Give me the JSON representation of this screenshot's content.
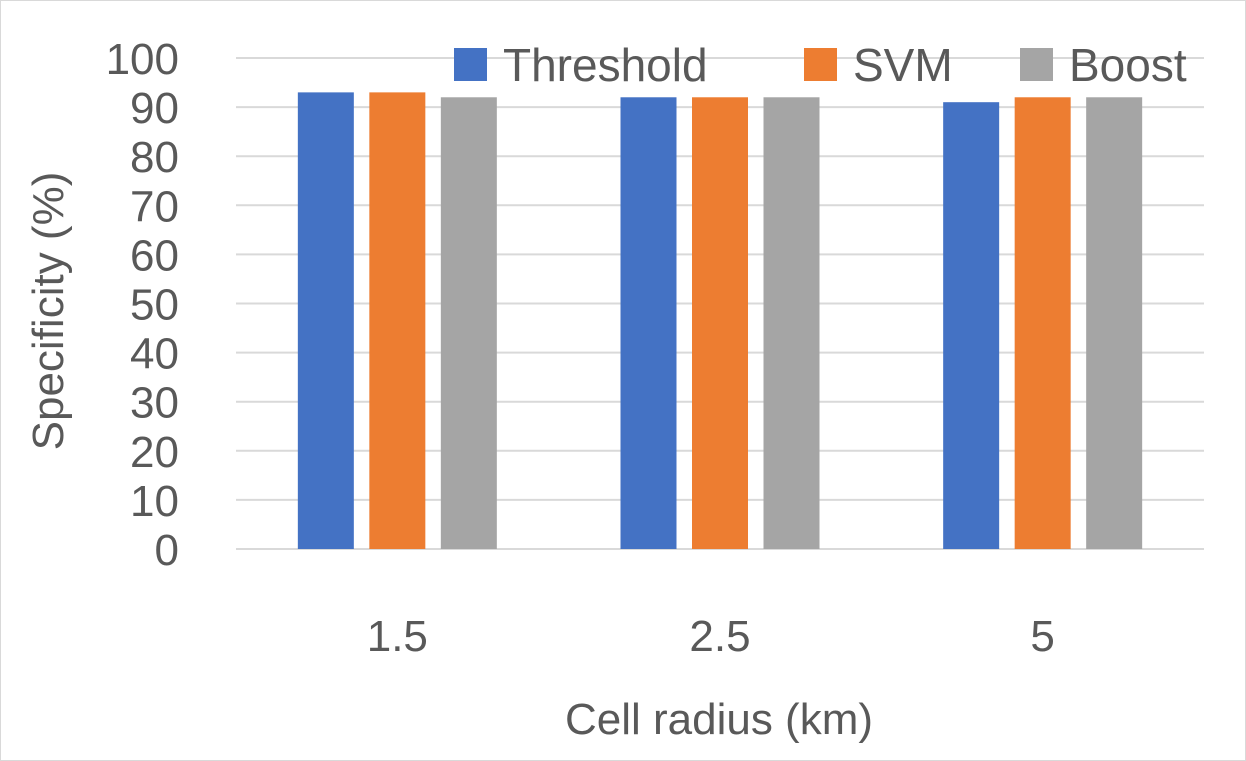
{
  "chart_data": {
    "type": "bar",
    "xlabel": "Cell radius (km)",
    "ylabel": "Specificity (%)",
    "categories": [
      "1.5",
      "2.5",
      "5"
    ],
    "ylim": [
      0,
      100
    ],
    "yticks": [
      0,
      10,
      20,
      30,
      40,
      50,
      60,
      70,
      80,
      90,
      100
    ],
    "grid": true,
    "legend": "top-right",
    "series": [
      {
        "name": "Threshold",
        "color": "#4472c4",
        "values": [
          93,
          92,
          91
        ]
      },
      {
        "name": "SVM",
        "color": "#ed7d31",
        "values": [
          93,
          92,
          92
        ]
      },
      {
        "name": "Boost",
        "color": "#a5a5a5",
        "values": [
          92,
          92,
          92
        ]
      }
    ]
  }
}
